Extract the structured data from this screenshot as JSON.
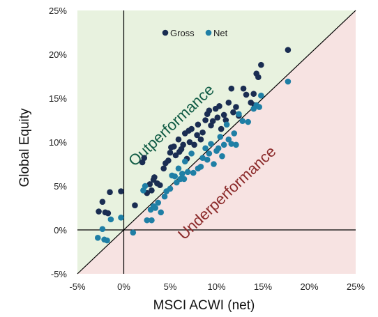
{
  "chart_data": {
    "type": "scatter",
    "xlabel": "MSCI ACWI (net)",
    "ylabel": "Global Equity",
    "xlim": [
      -5,
      25
    ],
    "ylim": [
      -5,
      25
    ],
    "x_ticks": [
      -5,
      0,
      5,
      10,
      15,
      20,
      25
    ],
    "y_ticks": [
      -5,
      0,
      5,
      10,
      15,
      20,
      25
    ],
    "x_tick_labels": [
      "-5%",
      "0%",
      "5%",
      "10%",
      "15%",
      "20%",
      "25%"
    ],
    "y_tick_labels": [
      "-5%",
      "0%",
      "5%",
      "10%",
      "15%",
      "20%",
      "25%"
    ],
    "legend_position": "top",
    "region_labels": {
      "above": "Outperformance",
      "below": "Underperformance"
    },
    "colors": {
      "gross": "#1a2d52",
      "net": "#1f7fa5",
      "above_region": "#e8f2df",
      "below_region": "#f7e3e2",
      "above_label": "#0f5b44",
      "below_label": "#8b2a2a",
      "diagonal": "#000000"
    },
    "series": [
      {
        "name": "Gross",
        "points": [
          [
            -2.7,
            2.1
          ],
          [
            -2.3,
            3.2
          ],
          [
            -2.0,
            2.0
          ],
          [
            -1.7,
            1.9
          ],
          [
            -1.5,
            4.3
          ],
          [
            -0.3,
            4.4
          ],
          [
            1.2,
            2.8
          ],
          [
            2.0,
            7.7
          ],
          [
            2.2,
            8.2
          ],
          [
            2.5,
            4.2
          ],
          [
            2.8,
            5.2
          ],
          [
            3.0,
            4.5
          ],
          [
            3.2,
            5.7
          ],
          [
            3.3,
            6.0
          ],
          [
            3.6,
            5.3
          ],
          [
            3.9,
            5.1
          ],
          [
            4.3,
            7.0
          ],
          [
            4.5,
            7.6
          ],
          [
            4.8,
            7.9
          ],
          [
            5.0,
            8.8
          ],
          [
            5.1,
            9.4
          ],
          [
            5.4,
            9.5
          ],
          [
            5.6,
            8.5
          ],
          [
            5.9,
            10.3
          ],
          [
            6.0,
            8.9
          ],
          [
            6.2,
            9.2
          ],
          [
            6.4,
            9.7
          ],
          [
            6.6,
            11.0
          ],
          [
            6.8,
            8.1
          ],
          [
            7.0,
            11.3
          ],
          [
            7.1,
            10.0
          ],
          [
            7.3,
            11.5
          ],
          [
            7.6,
            9.7
          ],
          [
            7.9,
            10.8
          ],
          [
            8.0,
            12.0
          ],
          [
            8.3,
            10.3
          ],
          [
            8.5,
            11.1
          ],
          [
            8.8,
            12.5
          ],
          [
            9.0,
            13.2
          ],
          [
            9.2,
            13.6
          ],
          [
            9.4,
            11.9
          ],
          [
            9.6,
            12.4
          ],
          [
            9.9,
            13.8
          ],
          [
            10.1,
            12.8
          ],
          [
            10.3,
            14.1
          ],
          [
            10.5,
            11.5
          ],
          [
            10.8,
            13.1
          ],
          [
            11.0,
            12.5
          ],
          [
            11.3,
            14.5
          ],
          [
            11.6,
            16.1
          ],
          [
            11.8,
            13.4
          ],
          [
            12.1,
            14.0
          ],
          [
            12.4,
            13.0
          ],
          [
            12.9,
            16.1
          ],
          [
            13.2,
            15.4
          ],
          [
            13.7,
            14.5
          ],
          [
            14.0,
            15.5
          ],
          [
            14.3,
            17.8
          ],
          [
            14.5,
            17.4
          ],
          [
            14.8,
            18.8
          ],
          [
            14.1,
            14.2
          ],
          [
            17.7,
            20.5
          ]
        ]
      },
      {
        "name": "Net",
        "points": [
          [
            -2.8,
            -0.9
          ],
          [
            -2.3,
            0.1
          ],
          [
            -2.1,
            -1.1
          ],
          [
            -1.8,
            -1.2
          ],
          [
            -1.4,
            1.2
          ],
          [
            -0.3,
            1.4
          ],
          [
            1.0,
            -0.3
          ],
          [
            2.1,
            4.5
          ],
          [
            2.3,
            5.0
          ],
          [
            2.5,
            1.1
          ],
          [
            2.9,
            2.3
          ],
          [
            3.0,
            1.1
          ],
          [
            3.2,
            2.7
          ],
          [
            3.4,
            2.5
          ],
          [
            3.7,
            3.1
          ],
          [
            4.0,
            2.0
          ],
          [
            4.4,
            3.8
          ],
          [
            4.6,
            4.4
          ],
          [
            5.0,
            4.7
          ],
          [
            5.2,
            6.2
          ],
          [
            5.5,
            6.1
          ],
          [
            5.7,
            5.4
          ],
          [
            5.9,
            7.0
          ],
          [
            6.1,
            5.8
          ],
          [
            6.3,
            6.4
          ],
          [
            6.5,
            5.8
          ],
          [
            6.6,
            7.8
          ],
          [
            6.9,
            6.6
          ],
          [
            7.3,
            8.7
          ],
          [
            7.5,
            6.5
          ],
          [
            8.0,
            7.0
          ],
          [
            8.3,
            7.2
          ],
          [
            8.5,
            8.2
          ],
          [
            8.8,
            9.3
          ],
          [
            9.0,
            8.0
          ],
          [
            9.2,
            8.7
          ],
          [
            9.4,
            9.8
          ],
          [
            9.7,
            7.5
          ],
          [
            10.0,
            9.0
          ],
          [
            10.2,
            9.3
          ],
          [
            10.4,
            10.6
          ],
          [
            10.6,
            8.4
          ],
          [
            10.8,
            9.7
          ],
          [
            11.1,
            12.0
          ],
          [
            11.3,
            10.3
          ],
          [
            11.6,
            9.8
          ],
          [
            11.9,
            11.0
          ],
          [
            12.1,
            9.7
          ],
          [
            12.4,
            13.2
          ],
          [
            12.8,
            12.4
          ],
          [
            13.4,
            12.3
          ],
          [
            14.0,
            13.8
          ],
          [
            14.3,
            14.2
          ],
          [
            14.6,
            14.0
          ],
          [
            14.8,
            15.3
          ],
          [
            17.7,
            16.9
          ]
        ]
      }
    ]
  }
}
